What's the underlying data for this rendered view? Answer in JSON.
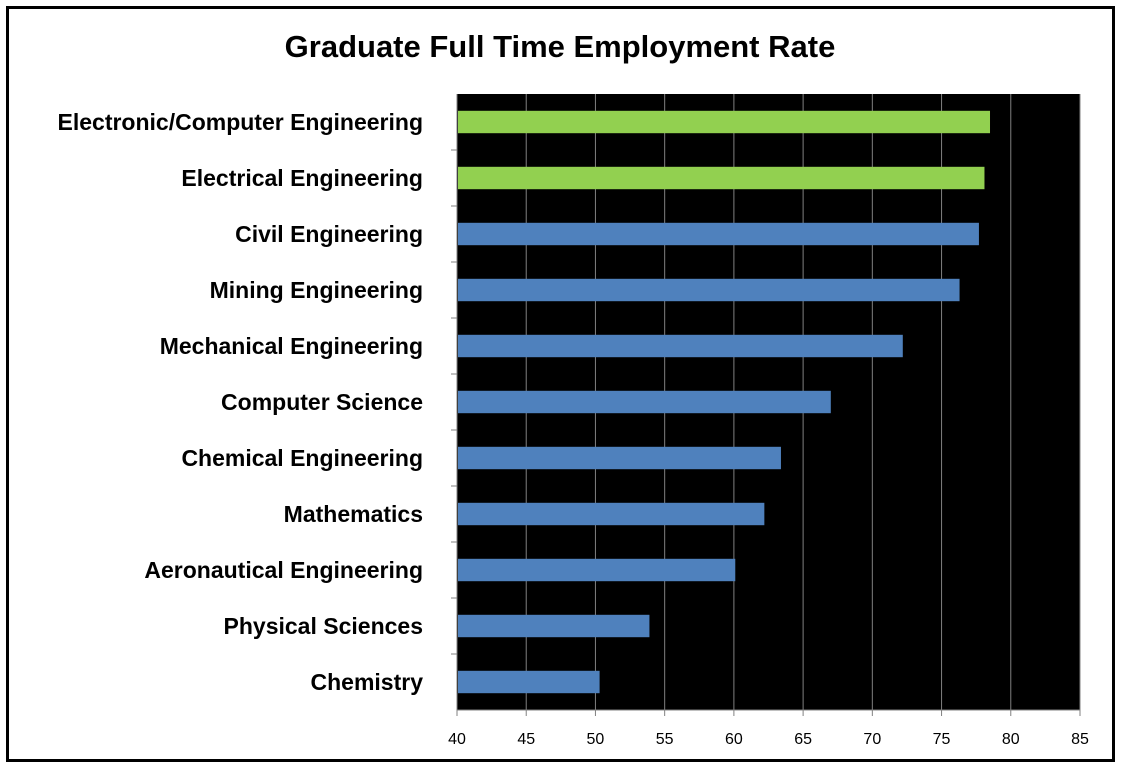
{
  "chart_data": {
    "type": "bar",
    "orientation": "horizontal",
    "title": "Graduate Full Time Employment Rate",
    "xlabel": "",
    "ylabel": "",
    "xlim": [
      40,
      85
    ],
    "x_ticks": [
      40,
      45,
      50,
      55,
      60,
      65,
      70,
      75,
      80,
      85
    ],
    "grid": true,
    "legend": "none",
    "categories": [
      "Electronic/Computer Engineering",
      "Electrical Engineering",
      "Civil Engineering",
      "Mining Engineering",
      "Mechanical Engineering",
      "Computer Science",
      "Chemical Engineering",
      "Mathematics",
      "Aeronautical Engineering",
      "Physical Sciences",
      "Chemistry"
    ],
    "values": [
      78.5,
      78.1,
      77.7,
      76.3,
      72.2,
      67.0,
      63.4,
      62.2,
      60.1,
      53.9,
      50.3
    ],
    "bar_colors": [
      "#92D050",
      "#92D050",
      "#4F81BD",
      "#4F81BD",
      "#4F81BD",
      "#4F81BD",
      "#4F81BD",
      "#4F81BD",
      "#4F81BD",
      "#4F81BD",
      "#4F81BD"
    ],
    "plot_background": "#000000",
    "gridline_color": "#808080"
  }
}
